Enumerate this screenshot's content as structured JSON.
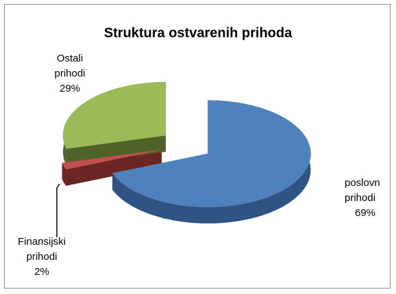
{
  "chart_data": {
    "type": "pie",
    "title": "Struktura ostvarenih prihoda",
    "categories": [
      "poslovn prihodi",
      "Finansijski prihodi",
      "Ostali prihodi"
    ],
    "values": [
      69,
      2,
      29
    ],
    "value_labels": [
      "69%",
      "2%",
      "29%"
    ],
    "colors": [
      "#4f81bd",
      "#c0504d",
      "#9bbb59"
    ],
    "side_colors": [
      "#2f5382",
      "#6b2624",
      "#4f6228"
    ]
  }
}
